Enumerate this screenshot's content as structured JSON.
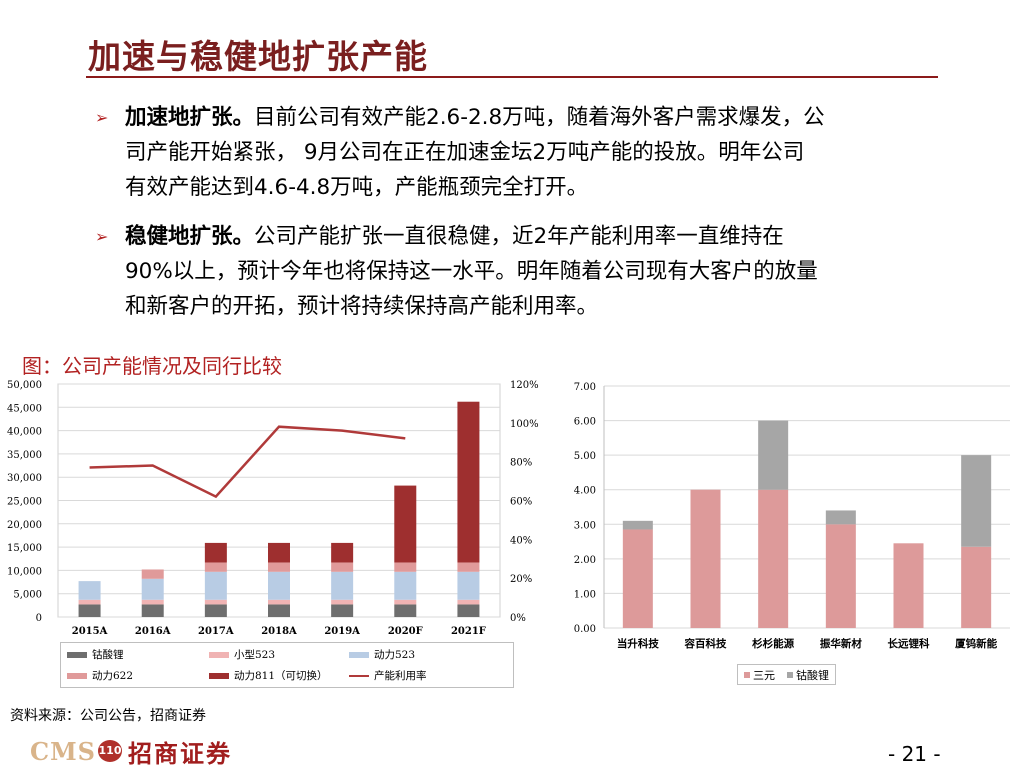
{
  "page": {
    "title": "加速与稳健地扩张产能",
    "page_number": "- 21 -"
  },
  "bullets": [
    {
      "head": "加速地扩张。",
      "lines": [
        "目前公司有效产能2.6-2.8万吨，随着海外客户需求爆发，公",
        "司产能开始紧张， 9月公司在正在加速金坛2万吨产能的投放。明年公司",
        "有效产能达到4.6-4.8万吨，产能瓶颈完全打开。"
      ]
    },
    {
      "head": "稳健地扩张。",
      "lines": [
        "公司产能扩张一直很稳健，近2年产能利用率一直维持在",
        "90%以上，预计今年也将保持这一水平。明年随着公司现有大客户的放量",
        "和新客户的开拓，预计将持续保持高产能利用率。"
      ]
    }
  ],
  "figure_caption": "图：公司产能情况及同行比较",
  "source_note": "资料来源：公司公告，招商证券",
  "footer": {
    "logo_en": "CMS",
    "logo_badge": "110",
    "logo_cn": "招商证券"
  },
  "colors": {
    "cobalt": "#6e6e6e",
    "small523": "#f0b3b3",
    "power523": "#b8cce4",
    "power622": "#e09a9a",
    "power811": "#9e2f2f",
    "utilization": "#b03a3a",
    "ternary": "#dd9a9a",
    "licoo2": "#a6a6a6"
  },
  "chart_data": [
    {
      "type": "bar",
      "stacked": true,
      "categories": [
        "2015A",
        "2016A",
        "2017A",
        "2018A",
        "2019A",
        "2020F",
        "2021F"
      ],
      "ylim": [
        0,
        50000
      ],
      "yticks": [
        "50,000",
        "45,000",
        "40,000",
        "35,000",
        "30,000",
        "25,000",
        "20,000",
        "15,000",
        "10,000",
        "5,000",
        "0"
      ],
      "y2lim": [
        0,
        120
      ],
      "y2ticks": [
        "120%",
        "100%",
        "80%",
        "60%",
        "40%",
        "20%",
        "0%"
      ],
      "series": [
        {
          "name": "钴酸锂",
          "values": [
            2700,
            2700,
            2700,
            2700,
            2700,
            2700,
            2700
          ]
        },
        {
          "name": "小型523",
          "values": [
            1000,
            1000,
            1000,
            1000,
            1000,
            1000,
            1000
          ]
        },
        {
          "name": "动力523",
          "values": [
            4000,
            4500,
            6000,
            6000,
            6000,
            6000,
            6000
          ]
        },
        {
          "name": "动力622",
          "values": [
            0,
            2000,
            2000,
            2000,
            2000,
            2000,
            2000
          ]
        },
        {
          "name": "动力811（可切换）",
          "values": [
            0,
            0,
            4200,
            4200,
            4200,
            16500,
            34500
          ]
        }
      ],
      "line": {
        "name": "产能利用率",
        "values": [
          77,
          78,
          62,
          98,
          96,
          92
        ]
      }
    },
    {
      "type": "bar",
      "stacked": true,
      "categories": [
        "当升科技",
        "容百科技",
        "杉杉能源",
        "振华新材",
        "长远锂科",
        "厦钨新能"
      ],
      "ylim": [
        0,
        7
      ],
      "yticks": [
        "7.00",
        "6.00",
        "5.00",
        "4.00",
        "3.00",
        "2.00",
        "1.00",
        "0.00"
      ],
      "series": [
        {
          "name": "三元",
          "values": [
            2.85,
            4.0,
            4.0,
            3.0,
            2.45,
            2.35
          ]
        },
        {
          "name": "钴酸锂",
          "values": [
            0.25,
            0,
            2.0,
            0.4,
            0,
            2.65
          ]
        }
      ]
    }
  ]
}
